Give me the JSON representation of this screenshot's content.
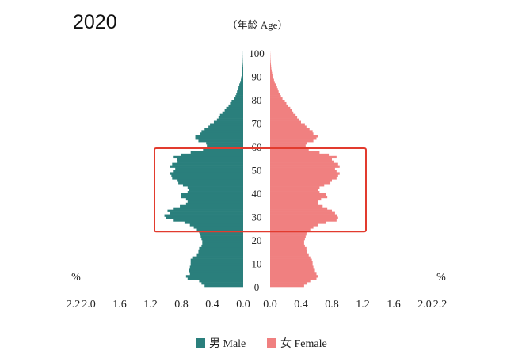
{
  "chart_data": {
    "type": "bar",
    "orientation": "horizontal-population-pyramid",
    "title": "2020",
    "ylabel": "（年龄 Age）",
    "xlabel_left": "%",
    "xlabel_right": "%",
    "xlim": [
      0,
      2.2
    ],
    "x_ticks_left": [
      "2.2",
      "2.0",
      "1.6",
      "1.2",
      "0.8",
      "0.4",
      "0.0"
    ],
    "x_ticks_right": [
      "0.0",
      "0.4",
      "0.8",
      "1.2",
      "1.6",
      "2.0",
      "2.2"
    ],
    "age_ticks": [
      "0",
      "10",
      "20",
      "30",
      "40",
      "50",
      "60",
      "70",
      "80",
      "90",
      "100"
    ],
    "age_range": [
      0,
      100
    ],
    "highlight_age_range": [
      24,
      59
    ],
    "highlight_color": "#e23b2e",
    "grid": false,
    "legend_position": "bottom-center",
    "series": [
      {
        "name": "男 Male",
        "color": "#2a7f7c",
        "values": [
          0.5,
          0.54,
          0.57,
          0.72,
          0.74,
          0.69,
          0.7,
          0.7,
          0.69,
          0.68,
          0.68,
          0.68,
          0.66,
          0.6,
          0.58,
          0.58,
          0.57,
          0.54,
          0.53,
          0.53,
          0.54,
          0.55,
          0.56,
          0.57,
          0.6,
          0.64,
          0.69,
          0.76,
          0.9,
          1.0,
          1.02,
          0.95,
          0.98,
          0.9,
          0.82,
          0.74,
          0.72,
          0.74,
          0.8,
          0.8,
          0.72,
          0.7,
          0.72,
          0.78,
          0.84,
          0.85,
          0.92,
          0.93,
          0.95,
          0.9,
          0.88,
          0.95,
          0.92,
          0.85,
          0.86,
          0.9,
          0.8,
          0.68,
          0.52,
          0.48,
          0.47,
          0.48,
          0.58,
          0.62,
          0.62,
          0.56,
          0.54,
          0.5,
          0.45,
          0.43,
          0.38,
          0.34,
          0.32,
          0.3,
          0.27,
          0.24,
          0.22,
          0.19,
          0.17,
          0.15,
          0.12,
          0.1,
          0.09,
          0.08,
          0.07,
          0.06,
          0.05,
          0.04,
          0.03,
          0.025,
          0.02,
          0.016,
          0.012,
          0.01,
          0.008,
          0.006,
          0.004,
          0.003,
          0.002,
          0.001,
          0.001
        ]
      },
      {
        "name": "女 Female",
        "color": "#f08080",
        "values": [
          0.44,
          0.48,
          0.52,
          0.6,
          0.62,
          0.6,
          0.58,
          0.58,
          0.56,
          0.55,
          0.55,
          0.54,
          0.52,
          0.5,
          0.48,
          0.48,
          0.47,
          0.45,
          0.44,
          0.44,
          0.45,
          0.46,
          0.47,
          0.48,
          0.52,
          0.56,
          0.62,
          0.72,
          0.86,
          0.88,
          0.87,
          0.84,
          0.8,
          0.74,
          0.68,
          0.62,
          0.62,
          0.66,
          0.74,
          0.72,
          0.64,
          0.62,
          0.64,
          0.7,
          0.78,
          0.8,
          0.86,
          0.88,
          0.9,
          0.86,
          0.84,
          0.9,
          0.88,
          0.82,
          0.8,
          0.86,
          0.76,
          0.64,
          0.5,
          0.46,
          0.46,
          0.48,
          0.56,
          0.6,
          0.62,
          0.56,
          0.55,
          0.51,
          0.47,
          0.45,
          0.4,
          0.37,
          0.35,
          0.33,
          0.3,
          0.28,
          0.26,
          0.23,
          0.21,
          0.19,
          0.16,
          0.14,
          0.13,
          0.11,
          0.1,
          0.09,
          0.08,
          0.06,
          0.05,
          0.04,
          0.03,
          0.025,
          0.02,
          0.015,
          0.012,
          0.009,
          0.006,
          0.004,
          0.003,
          0.002,
          0.001
        ]
      }
    ]
  }
}
